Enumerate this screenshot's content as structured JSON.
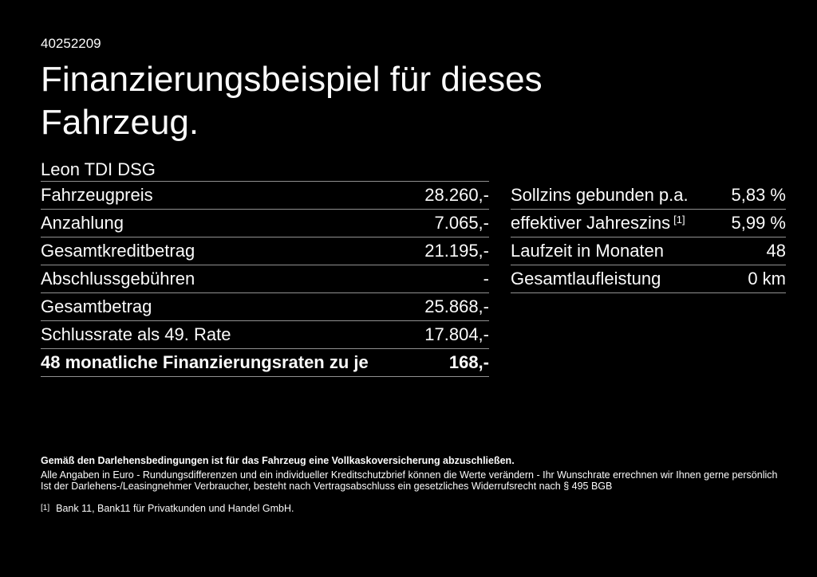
{
  "page": {
    "background_color": "#000000",
    "text_color": "#fbfbfb",
    "divider_color": "#919191"
  },
  "header": {
    "doc_number": "40252209",
    "title": "Finanzierungsbeispiel für dieses Fahrzeug.",
    "vehicle_model": "Leon TDI DSG"
  },
  "financing_table": {
    "rows": [
      {
        "label": "Fahrzeugpreis",
        "value": "28.260,-"
      },
      {
        "label": "Anzahlung",
        "value": "7.065,-"
      },
      {
        "label": "Gesamtkreditbetrag",
        "value": "21.195,-"
      },
      {
        "label": "Abschlussgebühren",
        "value": "-"
      },
      {
        "label": "Gesamtbetrag",
        "value": "25.868,-"
      },
      {
        "label": "Schlussrate als 49. Rate",
        "value": "17.804,-"
      },
      {
        "label": "48 monatliche Finanzierungsraten zu je",
        "value": "168,-",
        "bold": true
      }
    ]
  },
  "conditions_table": {
    "rows": [
      {
        "label": "Sollzins gebunden p.a.",
        "value": "5,83 %"
      },
      {
        "label": "effektiver Jahreszins",
        "footnote_marker": "[1]",
        "value": "5,99 %"
      },
      {
        "label": "Laufzeit in Monaten",
        "value": "48"
      },
      {
        "label": "Gesamtlaufleistung",
        "value": "0 km"
      }
    ]
  },
  "disclaimer": {
    "insurance_note": "Gemäß den Darlehensbedingungen ist für das Fahrzeug eine Vollkaskoversicherung abzuschließen.",
    "notes": [
      "Alle Angaben in Euro - Rundungsdifferenzen und ein individueller Kreditschutzbrief können die Werte verändern - Ihr Wunschrate errechnen wir Ihnen gerne persönlich",
      "Ist der Darlehens-/Leasingnehmer Verbraucher, besteht nach Vertragsabschluss ein gesetzliches Widerrufsrecht nach § 495 BGB"
    ],
    "footnote": {
      "marker": "[1]",
      "text": "Bank 11, Bank11 für Privatkunden und Handel GmbH."
    }
  }
}
